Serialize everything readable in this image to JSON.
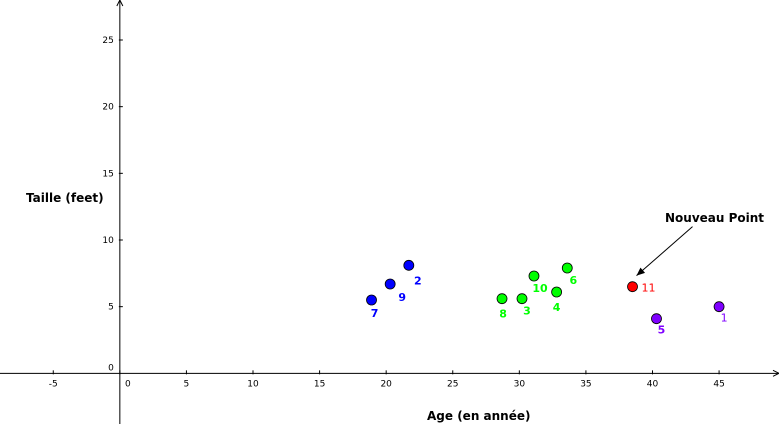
{
  "chart_data": {
    "type": "scatter",
    "title": "",
    "xlabel": "Age (en année)",
    "ylabel": "Taille (feet)",
    "xlim": [
      -9,
      49.5
    ],
    "ylim": [
      -3.8,
      28
    ],
    "x_ticks": [
      -5,
      0,
      5,
      10,
      15,
      20,
      25,
      30,
      35,
      40,
      45
    ],
    "y_ticks": [
      0,
      5,
      10,
      15,
      20,
      25
    ],
    "grid": false,
    "points": [
      {
        "label": "1",
        "x": 45.0,
        "y": 5.0,
        "color": "#7f00ff",
        "group": "violet"
      },
      {
        "label": "2",
        "x": 21.7,
        "y": 8.1,
        "color": "#0000ff",
        "group": "bleu"
      },
      {
        "label": "3",
        "x": 30.2,
        "y": 5.6,
        "color": "#00ff00",
        "group": "vert"
      },
      {
        "label": "4",
        "x": 32.8,
        "y": 6.1,
        "color": "#00ff00",
        "group": "vert"
      },
      {
        "label": "5",
        "x": 40.3,
        "y": 4.1,
        "color": "#7f00ff",
        "group": "violet"
      },
      {
        "label": "6",
        "x": 33.6,
        "y": 7.9,
        "color": "#00ff00",
        "group": "vert"
      },
      {
        "label": "7",
        "x": 18.9,
        "y": 5.5,
        "color": "#0000ff",
        "group": "bleu"
      },
      {
        "label": "8",
        "x": 28.7,
        "y": 5.6,
        "color": "#00ff00",
        "group": "vert"
      },
      {
        "label": "9",
        "x": 20.3,
        "y": 6.7,
        "color": "#0000ff",
        "group": "bleu"
      },
      {
        "label": "10",
        "x": 31.1,
        "y": 7.3,
        "color": "#00ff00",
        "group": "vert"
      },
      {
        "label": "11",
        "x": 38.5,
        "y": 6.5,
        "color": "#ff0000",
        "group": "rouge"
      }
    ],
    "annotations": [
      {
        "text": "Nouveau Point",
        "target_label": "11"
      }
    ]
  },
  "colors": {
    "bleu": "#0000ff",
    "vert": "#00ff00",
    "violet": "#7f00ff",
    "rouge": "#ff0000",
    "axis": "#000000"
  }
}
